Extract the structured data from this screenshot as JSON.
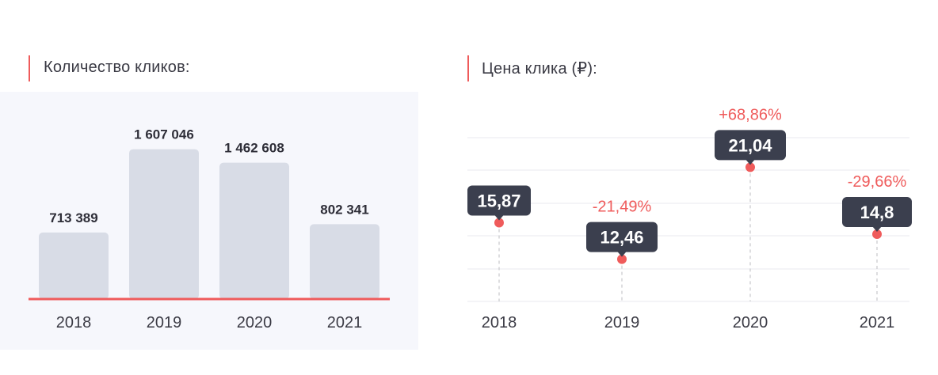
{
  "chart_data": [
    {
      "type": "bar",
      "title": "Количество кликов:",
      "categories": [
        "2018",
        "2019",
        "2020",
        "2021"
      ],
      "values": [
        713389,
        1607046,
        1462608,
        802341
      ],
      "value_labels": [
        "713 389",
        "1 607 046",
        "1 462 608",
        "802 341"
      ],
      "ylim": [
        0,
        1800000
      ],
      "grid": false,
      "colors": {
        "bar": "#d8dce6",
        "baseline": "#ef5b5b",
        "background": "#f6f7fc"
      }
    },
    {
      "type": "line",
      "title": "Цена клика (₽):",
      "categories": [
        "2018",
        "2019",
        "2020",
        "2021"
      ],
      "values": [
        15.87,
        12.46,
        21.04,
        14.8
      ],
      "value_labels": [
        "15,87",
        "12,46",
        "21,04",
        "14,8"
      ],
      "changes": [
        "",
        "-21,49%",
        "+68,86%",
        "-29,66%"
      ],
      "ylim": [
        0,
        30
      ],
      "grid": true,
      "colors": {
        "point": "#ef5b5b",
        "callout": "#3b3f4e",
        "change": "#ef5b5b"
      }
    }
  ]
}
